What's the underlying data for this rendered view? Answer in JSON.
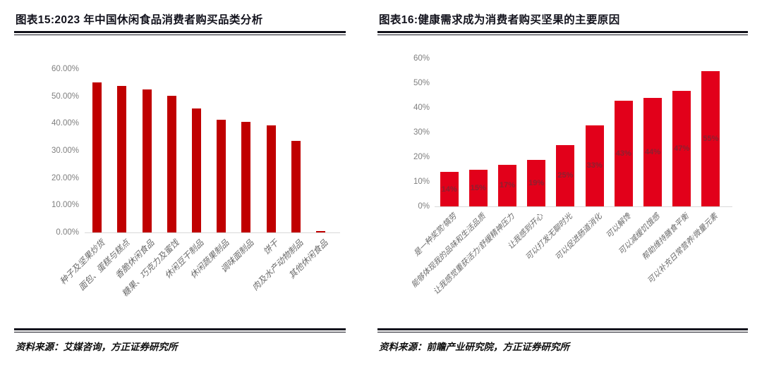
{
  "page": {
    "background": "#ffffff"
  },
  "chart_data": [
    {
      "type": "bar",
      "title": "图表15:2023 年中国休闲食品消费者购买品类分析",
      "source": "资料来源：艾媒咨询，方正证券研究所",
      "categories": [
        "种子及坚果炒货",
        "面包、蛋糕与糕点",
        "香脆休闲食品",
        "糖果、巧克力及蜜饯",
        "休闲豆干制品",
        "休闲蔬果制品",
        "调味面制品",
        "饼干",
        "肉及水产动物制品",
        "其他休闲食品"
      ],
      "values": [
        55.0,
        53.8,
        52.4,
        50.3,
        45.6,
        41.5,
        40.5,
        39.4,
        33.5,
        0.5
      ],
      "value_labels": null,
      "xlabel": "",
      "ylabel": "",
      "ylim": [
        0,
        60
      ],
      "yticks": [
        "0.00%",
        "10.00%",
        "20.00%",
        "30.00%",
        "40.00%",
        "50.00%",
        "60.00%"
      ],
      "grid": false,
      "legend": null,
      "bar_color": "#c00000"
    },
    {
      "type": "bar",
      "title": "图表16:健康需求成为消费者购买坚果的主要原因",
      "source": "资料来源：前瞻产业研究院，方正证券研究所",
      "categories": [
        "是一种奖赏/犒劳",
        "能够体现我的品味和生活品质",
        "让我感觉重获活力/舒缓精神压力",
        "让我感到开心",
        "可以打发无聊时光",
        "可以促进肠道消化",
        "可以解馋",
        "可以减缓饥饿感",
        "帮助维持膳食平衡",
        "可以补充日常营养/微量元素"
      ],
      "values": [
        14,
        15,
        17,
        19,
        25,
        33,
        43,
        44,
        47,
        55
      ],
      "value_labels": [
        "14%",
        "15%",
        "17%",
        "19%",
        "25%",
        "33%",
        "43%",
        "44%",
        "47%",
        "55%"
      ],
      "value_label_color": "#8b2130",
      "xlabel": "",
      "ylabel": "",
      "ylim": [
        0,
        60
      ],
      "yticks": [
        "0%",
        "10%",
        "20%",
        "30%",
        "40%",
        "50%",
        "60%"
      ],
      "grid": false,
      "legend": null,
      "bar_color": "#e2001a"
    }
  ]
}
